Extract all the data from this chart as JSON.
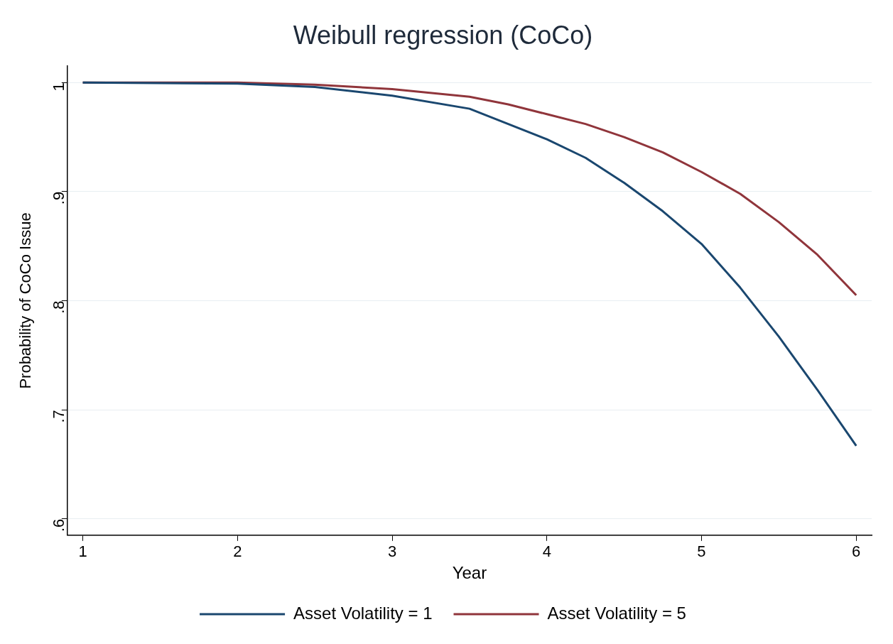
{
  "chart_data": {
    "type": "line",
    "title": "Weibull regression (CoCo)",
    "xlabel": "Year",
    "ylabel": "Probability of CoCo Issue",
    "xlim": [
      0.9,
      6.1
    ],
    "xticks": [
      1,
      2,
      3,
      4,
      5,
      6
    ],
    "ylim": [
      0.585,
      1.015
    ],
    "yticks": [
      {
        "value": 0.6,
        "label": ".6"
      },
      {
        "value": 0.7,
        "label": ".7"
      },
      {
        "value": 0.8,
        "label": ".8"
      },
      {
        "value": 0.9,
        "label": ".9"
      },
      {
        "value": 1,
        "label": "1"
      }
    ],
    "grid": "y",
    "legend": "bottom",
    "marker": "none",
    "line_style": "solid",
    "series": [
      {
        "name": "Asset Volatility = 1",
        "color": "#1a476f",
        "x": [
          1,
          2,
          2.5,
          3,
          3.5,
          3.75,
          4,
          4.25,
          4.5,
          4.75,
          5,
          5.25,
          5.5,
          5.75,
          6
        ],
        "values": [
          1,
          0.999,
          0.996,
          0.988,
          0.976,
          0.962,
          0.948,
          0.931,
          0.908,
          0.882,
          0.852,
          0.812,
          0.767,
          0.718,
          0.667
        ]
      },
      {
        "name": "Asset Volatility = 5",
        "color": "#90353b",
        "x": [
          1,
          2,
          2.5,
          3,
          3.5,
          3.75,
          4,
          4.25,
          4.5,
          4.75,
          5,
          5.25,
          5.5,
          5.75,
          6
        ],
        "values": [
          1,
          1,
          0.998,
          0.994,
          0.987,
          0.98,
          0.971,
          0.962,
          0.95,
          0.936,
          0.918,
          0.898,
          0.872,
          0.842,
          0.805
        ]
      }
    ]
  }
}
